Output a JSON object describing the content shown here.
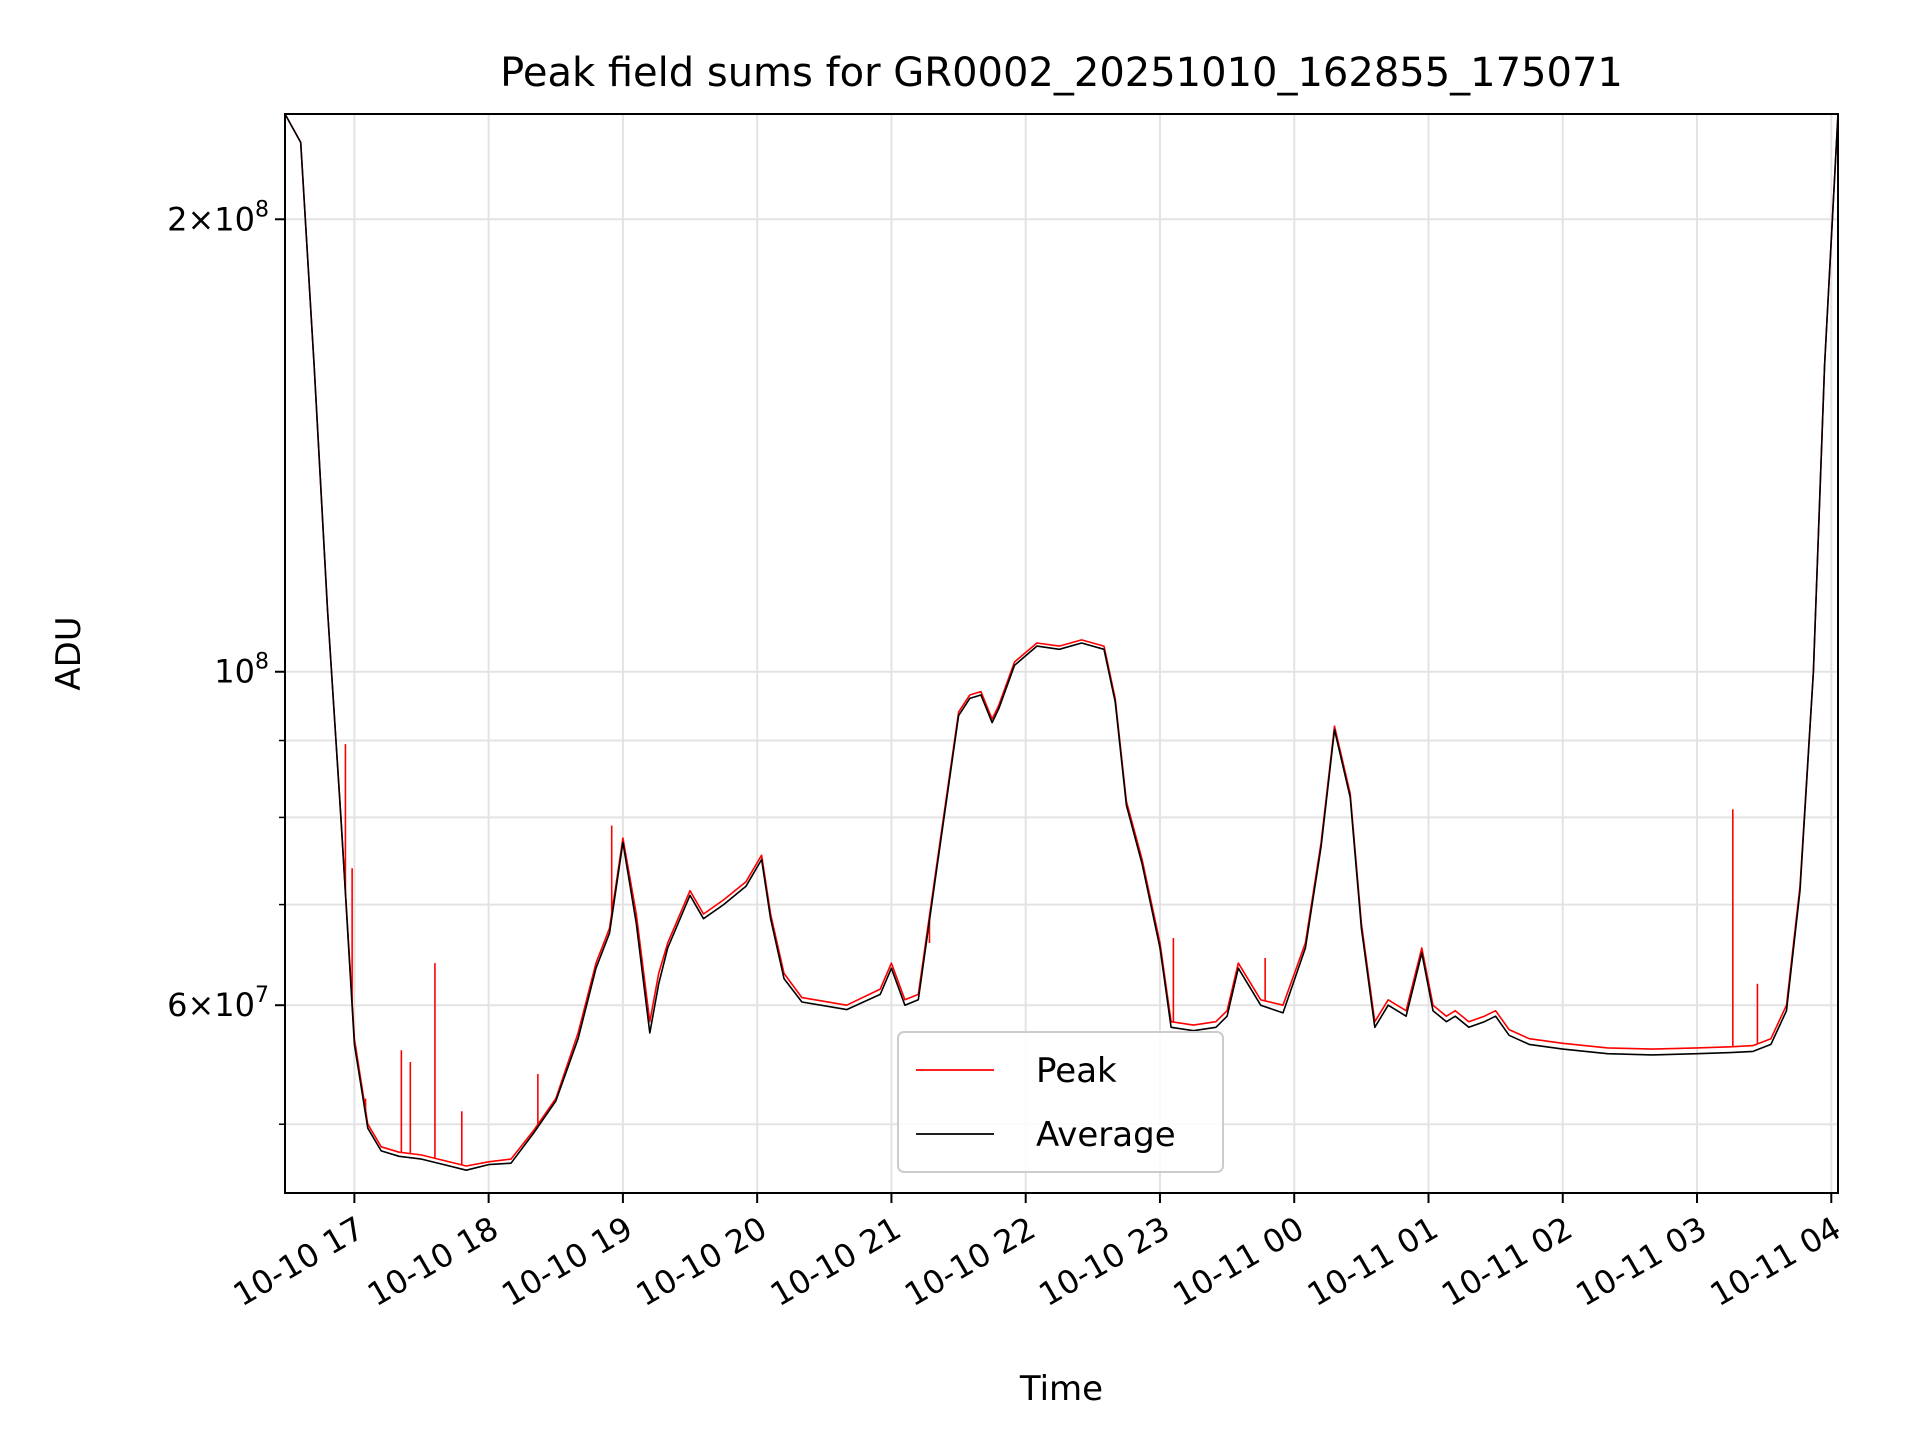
{
  "chart_data": {
    "type": "line",
    "title": "Peak field sums for GR0002_20251010_162855_175071",
    "xlabel": "Time",
    "ylabel": "ADU",
    "y_scale": "log",
    "ylim": [
      45000000,
      235000000
    ],
    "xlim": [
      "2025-10-10T16:29",
      "2025-10-11T04:03"
    ],
    "grid": true,
    "legend_position": "lower-center",
    "x_tick_labels": [
      "10-10 17",
      "10-10 18",
      "10-10 19",
      "10-10 20",
      "10-10 21",
      "10-10 22",
      "10-10 23",
      "10-11 00",
      "10-11 01",
      "10-11 02",
      "10-11 03",
      "10-11 04"
    ],
    "x_ticks": [
      "2025-10-10T17:00",
      "2025-10-10T18:00",
      "2025-10-10T19:00",
      "2025-10-10T20:00",
      "2025-10-10T21:00",
      "2025-10-10T22:00",
      "2025-10-10T23:00",
      "2025-10-11T00:00",
      "2025-10-11T01:00",
      "2025-10-11T02:00",
      "2025-10-11T03:00",
      "2025-10-11T04:00"
    ],
    "y_tick_labels": [
      {
        "value": 200000000,
        "mantissa": "2",
        "exponent": "8"
      },
      {
        "value": 100000000,
        "mantissa": "",
        "exponent": "8"
      },
      {
        "value": 60000000,
        "mantissa": "6",
        "exponent": "7"
      }
    ],
    "y_minor_ticks": [
      50000000,
      70000000,
      80000000,
      90000000
    ],
    "series": [
      {
        "name": "Peak",
        "color": "#ff0000",
        "x": [
          "2025-10-10T16:29",
          "2025-10-10T16:36",
          "2025-10-10T16:42",
          "2025-10-10T16:48",
          "2025-10-10T16:54",
          "2025-10-10T17:00",
          "2025-10-10T17:06",
          "2025-10-10T17:12",
          "2025-10-10T17:20",
          "2025-10-10T17:30",
          "2025-10-10T17:40",
          "2025-10-10T17:50",
          "2025-10-10T18:00",
          "2025-10-10T18:10",
          "2025-10-10T18:20",
          "2025-10-10T18:30",
          "2025-10-10T18:40",
          "2025-10-10T18:48",
          "2025-10-10T18:54",
          "2025-10-10T19:00",
          "2025-10-10T19:06",
          "2025-10-10T19:12",
          "2025-10-10T19:16",
          "2025-10-10T19:20",
          "2025-10-10T19:30",
          "2025-10-10T19:36",
          "2025-10-10T19:45",
          "2025-10-10T19:55",
          "2025-10-10T20:02",
          "2025-10-10T20:06",
          "2025-10-10T20:12",
          "2025-10-10T20:20",
          "2025-10-10T20:40",
          "2025-10-10T20:55",
          "2025-10-10T21:00",
          "2025-10-10T21:06",
          "2025-10-10T21:12",
          "2025-10-10T21:20",
          "2025-10-10T21:30",
          "2025-10-10T21:35",
          "2025-10-10T21:40",
          "2025-10-10T21:45",
          "2025-10-10T21:48",
          "2025-10-10T21:55",
          "2025-10-10T22:05",
          "2025-10-10T22:15",
          "2025-10-10T22:25",
          "2025-10-10T22:35",
          "2025-10-10T22:40",
          "2025-10-10T22:45",
          "2025-10-10T22:52",
          "2025-10-10T23:00",
          "2025-10-10T23:05",
          "2025-10-10T23:15",
          "2025-10-10T23:25",
          "2025-10-10T23:30",
          "2025-10-10T23:35",
          "2025-10-10T23:45",
          "2025-10-10T23:55",
          "2025-10-11T00:05",
          "2025-10-11T00:12",
          "2025-10-11T00:18",
          "2025-10-11T00:25",
          "2025-10-11T00:30",
          "2025-10-11T00:36",
          "2025-10-11T00:42",
          "2025-10-11T00:50",
          "2025-10-11T00:57",
          "2025-10-11T01:02",
          "2025-10-11T01:08",
          "2025-10-11T01:12",
          "2025-10-11T01:18",
          "2025-10-11T01:25",
          "2025-10-11T01:30",
          "2025-10-11T01:36",
          "2025-10-11T01:45",
          "2025-10-11T02:00",
          "2025-10-11T02:20",
          "2025-10-11T02:40",
          "2025-10-11T03:00",
          "2025-10-11T03:15",
          "2025-10-11T03:25",
          "2025-10-11T03:33",
          "2025-10-11T03:40",
          "2025-10-11T03:46",
          "2025-10-11T03:52",
          "2025-10-11T03:57",
          "2025-10-11T04:03"
        ],
        "values": [
          235000000,
          225000000,
          160000000,
          110000000,
          80000000,
          57000000,
          50000000,
          48300000,
          47900000,
          47700000,
          47300000,
          46900000,
          47200000,
          47400000,
          49500000,
          52000000,
          57500000,
          64000000,
          67500000,
          77500000,
          69000000,
          58500000,
          63000000,
          66000000,
          71500000,
          69000000,
          70500000,
          72500000,
          75500000,
          69000000,
          63000000,
          60700000,
          60000000,
          61500000,
          64000000,
          60500000,
          61000000,
          74000000,
          94000000,
          96500000,
          97000000,
          93000000,
          95000000,
          101500000,
          104500000,
          104000000,
          105000000,
          104000000,
          96000000,
          82000000,
          75000000,
          66000000,
          58500000,
          58200000,
          58500000,
          59500000,
          64000000,
          60500000,
          60000000,
          66000000,
          77000000,
          92000000,
          83000000,
          68000000,
          58500000,
          60500000,
          59500000,
          65500000,
          60000000,
          59000000,
          59500000,
          58500000,
          59000000,
          59500000,
          57800000,
          57000000,
          56600000,
          56200000,
          56100000,
          56200000,
          56300000,
          56400000,
          57000000,
          60000000,
          72000000,
          100000000,
          160000000,
          235000000
        ],
        "spikes": [
          {
            "x": "2025-10-10T16:56",
            "value": 89500000
          },
          {
            "x": "2025-10-10T16:59",
            "value": 74000000
          },
          {
            "x": "2025-10-10T17:05",
            "value": 52000000
          },
          {
            "x": "2025-10-10T17:21",
            "value": 56000000
          },
          {
            "x": "2025-10-10T17:25",
            "value": 55000000
          },
          {
            "x": "2025-10-10T17:36",
            "value": 64000000
          },
          {
            "x": "2025-10-10T17:48",
            "value": 51000000
          },
          {
            "x": "2025-10-10T18:22",
            "value": 54000000
          },
          {
            "x": "2025-10-10T18:55",
            "value": 79000000
          },
          {
            "x": "2025-10-10T21:17",
            "value": 66000000
          },
          {
            "x": "2025-10-10T23:06",
            "value": 66500000
          },
          {
            "x": "2025-10-10T23:47",
            "value": 64500000
          },
          {
            "x": "2025-10-11T03:16",
            "value": 81000000
          },
          {
            "x": "2025-10-11T03:27",
            "value": 62000000
          }
        ]
      },
      {
        "name": "Average",
        "color": "#000000",
        "x": [
          "2025-10-10T16:29",
          "2025-10-10T16:36",
          "2025-10-10T16:42",
          "2025-10-10T16:48",
          "2025-10-10T16:54",
          "2025-10-10T17:00",
          "2025-10-10T17:06",
          "2025-10-10T17:12",
          "2025-10-10T17:20",
          "2025-10-10T17:30",
          "2025-10-10T17:40",
          "2025-10-10T17:50",
          "2025-10-10T18:00",
          "2025-10-10T18:10",
          "2025-10-10T18:20",
          "2025-10-10T18:30",
          "2025-10-10T18:40",
          "2025-10-10T18:48",
          "2025-10-10T18:54",
          "2025-10-10T19:00",
          "2025-10-10T19:06",
          "2025-10-10T19:12",
          "2025-10-10T19:16",
          "2025-10-10T19:20",
          "2025-10-10T19:30",
          "2025-10-10T19:36",
          "2025-10-10T19:45",
          "2025-10-10T19:55",
          "2025-10-10T20:02",
          "2025-10-10T20:06",
          "2025-10-10T20:12",
          "2025-10-10T20:20",
          "2025-10-10T20:40",
          "2025-10-10T20:55",
          "2025-10-10T21:00",
          "2025-10-10T21:06",
          "2025-10-10T21:12",
          "2025-10-10T21:20",
          "2025-10-10T21:30",
          "2025-10-10T21:35",
          "2025-10-10T21:40",
          "2025-10-10T21:45",
          "2025-10-10T21:48",
          "2025-10-10T21:55",
          "2025-10-10T22:05",
          "2025-10-10T22:15",
          "2025-10-10T22:25",
          "2025-10-10T22:35",
          "2025-10-10T22:40",
          "2025-10-10T22:45",
          "2025-10-10T22:52",
          "2025-10-10T23:00",
          "2025-10-10T23:05",
          "2025-10-10T23:15",
          "2025-10-10T23:25",
          "2025-10-10T23:30",
          "2025-10-10T23:35",
          "2025-10-10T23:45",
          "2025-10-10T23:55",
          "2025-10-11T00:05",
          "2025-10-11T00:12",
          "2025-10-11T00:18",
          "2025-10-11T00:25",
          "2025-10-11T00:30",
          "2025-10-11T00:36",
          "2025-10-11T00:42",
          "2025-10-11T00:50",
          "2025-10-11T00:57",
          "2025-10-11T01:02",
          "2025-10-11T01:08",
          "2025-10-11T01:12",
          "2025-10-11T01:18",
          "2025-10-11T01:25",
          "2025-10-11T01:30",
          "2025-10-11T01:36",
          "2025-10-11T01:45",
          "2025-10-11T02:00",
          "2025-10-11T02:20",
          "2025-10-11T02:40",
          "2025-10-11T03:00",
          "2025-10-11T03:15",
          "2025-10-11T03:25",
          "2025-10-11T03:33",
          "2025-10-11T03:40",
          "2025-10-11T03:46",
          "2025-10-11T03:52",
          "2025-10-11T03:57",
          "2025-10-11T04:03"
        ],
        "values": [
          235000000,
          225000000,
          160000000,
          110000000,
          80000000,
          56500000,
          49700000,
          48000000,
          47600000,
          47400000,
          47000000,
          46600000,
          47000000,
          47100000,
          49300000,
          51800000,
          57000000,
          63500000,
          67000000,
          77000000,
          68000000,
          57500000,
          62000000,
          65500000,
          71000000,
          68500000,
          70000000,
          72000000,
          75000000,
          68500000,
          62500000,
          60300000,
          59600000,
          61000000,
          63500000,
          60000000,
          60500000,
          73500000,
          93500000,
          96000000,
          96500000,
          92500000,
          94500000,
          101000000,
          104000000,
          103500000,
          104500000,
          103500000,
          95500000,
          81500000,
          74500000,
          65500000,
          58000000,
          57700000,
          58000000,
          59000000,
          63500000,
          60000000,
          59300000,
          65500000,
          76500000,
          91500000,
          82500000,
          67500000,
          58000000,
          60000000,
          59000000,
          65000000,
          59500000,
          58500000,
          59000000,
          58000000,
          58500000,
          59000000,
          57300000,
          56500000,
          56100000,
          55700000,
          55600000,
          55700000,
          55800000,
          55900000,
          56500000,
          59500000,
          71500000,
          100000000,
          160000000,
          235000000
        ]
      }
    ]
  }
}
